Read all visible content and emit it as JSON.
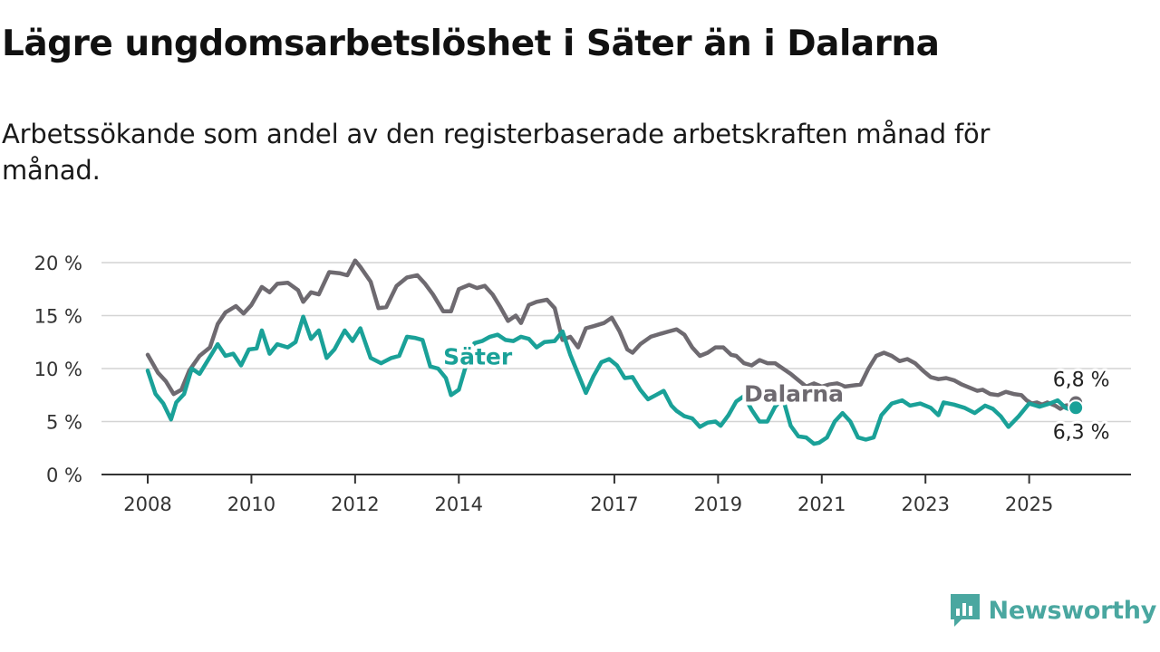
{
  "header": {
    "title": "Lägre ungdomsarbetslöshet i Säter än i Dalarna",
    "subtitle": "Arbetssökande som andel av den registerbaserade arbetskraften månad för månad."
  },
  "brand": {
    "name": "Newsworthy",
    "icon": "newsworthy-logo-icon",
    "color": "#4aa7a0"
  },
  "chart_data": {
    "type": "line",
    "ylim": [
      0,
      20
    ],
    "yticks": [
      0,
      5,
      10,
      15,
      20
    ],
    "ytick_labels": [
      "0 %",
      "5 %",
      "10 %",
      "15 %",
      "20 %"
    ],
    "xlim": [
      2008,
      2025.95
    ],
    "xticks": [
      2008,
      2010,
      2012,
      2014,
      2017,
      2019,
      2021,
      2023,
      2025
    ],
    "xtick_labels": [
      "2008",
      "2010",
      "2012",
      "2014",
      "2017",
      "2019",
      "2021",
      "2023",
      "2025"
    ],
    "grid": "horizontal",
    "series": [
      {
        "name": "Dalarna",
        "color": "#6e6a70",
        "end_label": "6,8 %",
        "points": [
          [
            2008.0,
            11.3
          ],
          [
            2008.2,
            9.6
          ],
          [
            2008.35,
            8.8
          ],
          [
            2008.5,
            7.6
          ],
          [
            2008.65,
            8.0
          ],
          [
            2008.8,
            9.8
          ],
          [
            2009.0,
            11.2
          ],
          [
            2009.2,
            12.0
          ],
          [
            2009.35,
            14.2
          ],
          [
            2009.5,
            15.3
          ],
          [
            2009.7,
            15.9
          ],
          [
            2009.85,
            15.2
          ],
          [
            2010.0,
            16.0
          ],
          [
            2010.2,
            17.7
          ],
          [
            2010.35,
            17.2
          ],
          [
            2010.5,
            18.0
          ],
          [
            2010.7,
            18.1
          ],
          [
            2010.9,
            17.4
          ],
          [
            2011.0,
            16.3
          ],
          [
            2011.15,
            17.2
          ],
          [
            2011.3,
            17.0
          ],
          [
            2011.5,
            19.1
          ],
          [
            2011.7,
            19.0
          ],
          [
            2011.85,
            18.8
          ],
          [
            2012.0,
            20.2
          ],
          [
            2012.1,
            19.6
          ],
          [
            2012.3,
            18.2
          ],
          [
            2012.45,
            15.7
          ],
          [
            2012.6,
            15.8
          ],
          [
            2012.8,
            17.8
          ],
          [
            2013.0,
            18.6
          ],
          [
            2013.2,
            18.8
          ],
          [
            2013.35,
            18.0
          ],
          [
            2013.5,
            17.0
          ],
          [
            2013.7,
            15.4
          ],
          [
            2013.85,
            15.4
          ],
          [
            2014.0,
            17.5
          ],
          [
            2014.2,
            17.9
          ],
          [
            2014.35,
            17.6
          ],
          [
            2014.5,
            17.8
          ],
          [
            2014.65,
            17.0
          ],
          [
            2014.8,
            15.8
          ],
          [
            2014.95,
            14.5
          ],
          [
            2015.1,
            15.0
          ],
          [
            2015.2,
            14.3
          ],
          [
            2015.35,
            16.0
          ],
          [
            2015.5,
            16.3
          ],
          [
            2015.7,
            16.5
          ],
          [
            2015.85,
            15.7
          ],
          [
            2016.0,
            12.7
          ],
          [
            2016.15,
            13.0
          ],
          [
            2016.3,
            12.0
          ],
          [
            2016.45,
            13.8
          ],
          [
            2016.6,
            14.0
          ],
          [
            2016.8,
            14.3
          ],
          [
            2016.95,
            14.8
          ],
          [
            2017.1,
            13.5
          ],
          [
            2017.25,
            11.8
          ],
          [
            2017.35,
            11.5
          ],
          [
            2017.5,
            12.3
          ],
          [
            2017.7,
            13.0
          ],
          [
            2017.9,
            13.3
          ],
          [
            2018.05,
            13.5
          ],
          [
            2018.2,
            13.7
          ],
          [
            2018.35,
            13.2
          ],
          [
            2018.5,
            12.0
          ],
          [
            2018.65,
            11.2
          ],
          [
            2018.8,
            11.5
          ],
          [
            2018.95,
            12.0
          ],
          [
            2019.1,
            12.0
          ],
          [
            2019.25,
            11.3
          ],
          [
            2019.35,
            11.2
          ],
          [
            2019.5,
            10.5
          ],
          [
            2019.65,
            10.3
          ],
          [
            2019.8,
            10.8
          ],
          [
            2019.95,
            10.5
          ],
          [
            2020.1,
            10.5
          ],
          [
            2020.25,
            10.0
          ],
          [
            2020.4,
            9.5
          ],
          [
            2020.55,
            8.9
          ],
          [
            2020.7,
            8.3
          ],
          [
            2020.85,
            8.6
          ],
          [
            2021.0,
            8.3
          ],
          [
            2021.15,
            8.5
          ],
          [
            2021.3,
            8.6
          ],
          [
            2021.45,
            8.3
          ],
          [
            2021.6,
            8.4
          ],
          [
            2021.75,
            8.5
          ],
          [
            2021.9,
            10.0
          ],
          [
            2022.05,
            11.2
          ],
          [
            2022.2,
            11.5
          ],
          [
            2022.35,
            11.2
          ],
          [
            2022.5,
            10.7
          ],
          [
            2022.65,
            10.9
          ],
          [
            2022.8,
            10.5
          ],
          [
            2022.95,
            9.8
          ],
          [
            2023.1,
            9.2
          ],
          [
            2023.25,
            9.0
          ],
          [
            2023.4,
            9.1
          ],
          [
            2023.55,
            8.9
          ],
          [
            2023.7,
            8.5
          ],
          [
            2023.85,
            8.2
          ],
          [
            2024.0,
            7.9
          ],
          [
            2024.1,
            8.0
          ],
          [
            2024.25,
            7.6
          ],
          [
            2024.4,
            7.5
          ],
          [
            2024.55,
            7.8
          ],
          [
            2024.7,
            7.6
          ],
          [
            2024.85,
            7.5
          ],
          [
            2024.95,
            7.0
          ],
          [
            2025.05,
            6.7
          ],
          [
            2025.15,
            6.8
          ],
          [
            2025.25,
            6.6
          ],
          [
            2025.35,
            6.8
          ],
          [
            2025.5,
            6.5
          ],
          [
            2025.6,
            6.2
          ],
          [
            2025.7,
            6.5
          ],
          [
            2025.8,
            6.6
          ],
          [
            2025.9,
            6.8
          ]
        ]
      },
      {
        "name": "Säter",
        "color": "#1aa198",
        "end_label": "6,3 %",
        "points": [
          [
            2008.0,
            9.8
          ],
          [
            2008.15,
            7.6
          ],
          [
            2008.3,
            6.7
          ],
          [
            2008.45,
            5.2
          ],
          [
            2008.55,
            6.8
          ],
          [
            2008.7,
            7.6
          ],
          [
            2008.85,
            10.0
          ],
          [
            2009.0,
            9.5
          ],
          [
            2009.2,
            11.1
          ],
          [
            2009.35,
            12.3
          ],
          [
            2009.5,
            11.2
          ],
          [
            2009.65,
            11.4
          ],
          [
            2009.8,
            10.3
          ],
          [
            2009.95,
            11.8
          ],
          [
            2010.1,
            11.9
          ],
          [
            2010.2,
            13.6
          ],
          [
            2010.35,
            11.4
          ],
          [
            2010.5,
            12.3
          ],
          [
            2010.7,
            12.0
          ],
          [
            2010.85,
            12.5
          ],
          [
            2011.0,
            14.9
          ],
          [
            2011.15,
            12.8
          ],
          [
            2011.3,
            13.6
          ],
          [
            2011.45,
            11.0
          ],
          [
            2011.6,
            11.8
          ],
          [
            2011.8,
            13.6
          ],
          [
            2011.95,
            12.6
          ],
          [
            2012.1,
            13.8
          ],
          [
            2012.3,
            11.0
          ],
          [
            2012.5,
            10.5
          ],
          [
            2012.7,
            11.0
          ],
          [
            2012.85,
            11.2
          ],
          [
            2013.0,
            13.0
          ],
          [
            2013.15,
            12.9
          ],
          [
            2013.3,
            12.7
          ],
          [
            2013.45,
            10.2
          ],
          [
            2013.6,
            10.0
          ],
          [
            2013.75,
            9.1
          ],
          [
            2013.85,
            7.5
          ],
          [
            2014.0,
            8.0
          ],
          [
            2014.15,
            10.5
          ],
          [
            2014.3,
            12.4
          ],
          [
            2014.45,
            12.6
          ],
          [
            2014.6,
            13.0
          ],
          [
            2014.75,
            13.2
          ],
          [
            2014.9,
            12.7
          ],
          [
            2015.05,
            12.6
          ],
          [
            2015.2,
            13.0
          ],
          [
            2015.35,
            12.8
          ],
          [
            2015.5,
            12.0
          ],
          [
            2015.65,
            12.5
          ],
          [
            2015.85,
            12.6
          ],
          [
            2016.0,
            13.5
          ],
          [
            2016.15,
            11.3
          ],
          [
            2016.3,
            9.5
          ],
          [
            2016.45,
            7.7
          ],
          [
            2016.6,
            9.3
          ],
          [
            2016.75,
            10.6
          ],
          [
            2016.9,
            10.9
          ],
          [
            2017.05,
            10.3
          ],
          [
            2017.2,
            9.1
          ],
          [
            2017.35,
            9.2
          ],
          [
            2017.5,
            8.0
          ],
          [
            2017.65,
            7.1
          ],
          [
            2017.8,
            7.5
          ],
          [
            2017.95,
            7.9
          ],
          [
            2018.1,
            6.5
          ],
          [
            2018.2,
            6.0
          ],
          [
            2018.35,
            5.5
          ],
          [
            2018.5,
            5.3
          ],
          [
            2018.65,
            4.5
          ],
          [
            2018.8,
            4.9
          ],
          [
            2018.95,
            5.0
          ],
          [
            2019.05,
            4.6
          ],
          [
            2019.2,
            5.6
          ],
          [
            2019.35,
            6.9
          ],
          [
            2019.5,
            7.4
          ],
          [
            2019.65,
            6.1
          ],
          [
            2019.8,
            5.0
          ],
          [
            2019.95,
            5.0
          ],
          [
            2020.1,
            6.4
          ],
          [
            2020.25,
            7.2
          ],
          [
            2020.4,
            4.6
          ],
          [
            2020.55,
            3.6
          ],
          [
            2020.7,
            3.5
          ],
          [
            2020.85,
            2.9
          ],
          [
            2020.95,
            3.0
          ],
          [
            2021.1,
            3.5
          ],
          [
            2021.25,
            5.0
          ],
          [
            2021.4,
            5.8
          ],
          [
            2021.55,
            5.0
          ],
          [
            2021.7,
            3.5
          ],
          [
            2021.85,
            3.3
          ],
          [
            2022.0,
            3.5
          ],
          [
            2022.15,
            5.6
          ],
          [
            2022.35,
            6.7
          ],
          [
            2022.55,
            7.0
          ],
          [
            2022.7,
            6.5
          ],
          [
            2022.9,
            6.7
          ],
          [
            2023.1,
            6.3
          ],
          [
            2023.25,
            5.6
          ],
          [
            2023.35,
            6.8
          ],
          [
            2023.55,
            6.6
          ],
          [
            2023.75,
            6.3
          ],
          [
            2023.95,
            5.8
          ],
          [
            2024.15,
            6.5
          ],
          [
            2024.3,
            6.2
          ],
          [
            2024.45,
            5.5
          ],
          [
            2024.6,
            4.5
          ],
          [
            2024.8,
            5.5
          ],
          [
            2025.0,
            6.7
          ],
          [
            2025.2,
            6.4
          ],
          [
            2025.4,
            6.7
          ],
          [
            2025.55,
            7.0
          ],
          [
            2025.7,
            6.3
          ],
          [
            2025.8,
            6.1
          ],
          [
            2025.9,
            6.3
          ]
        ]
      }
    ]
  }
}
